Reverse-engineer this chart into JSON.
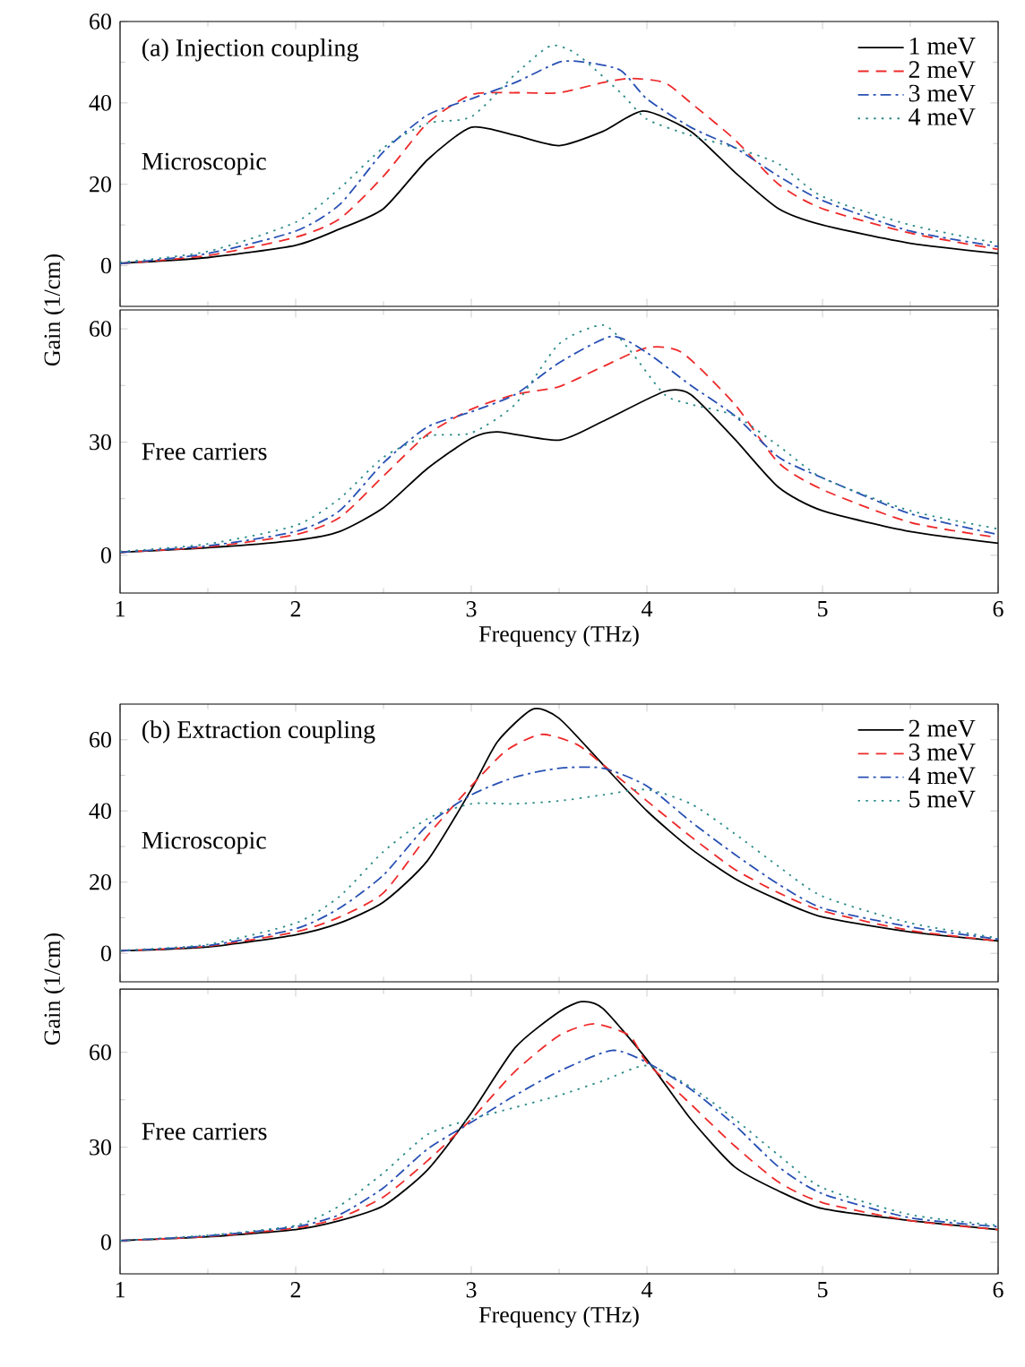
{
  "chart_data": [
    {
      "type": "line",
      "annotations": [
        "(a)  Injection coupling",
        "Microscopic"
      ],
      "xlim": [
        1,
        6
      ],
      "xticks": [
        1,
        2,
        3,
        4,
        5,
        6
      ],
      "ylim": [
        -10,
        60
      ],
      "yticks": [
        0,
        20,
        40,
        60
      ],
      "tick_labels": "y",
      "legend": "top right",
      "series": [
        {
          "name": "1 meV",
          "color": "#000000",
          "line_style": "solid",
          "x": [
            1,
            1.5,
            2,
            2.25,
            2.5,
            2.75,
            3,
            3.25,
            3.5,
            3.75,
            3.98,
            4.25,
            4.5,
            4.75,
            5,
            5.5,
            6
          ],
          "values": [
            0.6,
            2,
            5,
            9,
            14,
            26,
            34,
            32,
            29.5,
            33,
            38,
            33,
            23,
            14,
            10,
            5.5,
            3
          ]
        },
        {
          "name": "2 meV",
          "color": "#ee2a2a",
          "line_style": "dashed",
          "x": [
            1,
            1.5,
            2,
            2.25,
            2.5,
            2.75,
            3,
            3.25,
            3.5,
            3.75,
            3.9,
            4.1,
            4.25,
            4.5,
            4.75,
            5,
            5.5,
            6
          ],
          "values": [
            0.5,
            2.5,
            7,
            11.5,
            22,
            35,
            42,
            42.5,
            42.5,
            45,
            46,
            45,
            40,
            31,
            20,
            14,
            8,
            4
          ]
        },
        {
          "name": "3 meV",
          "color": "#2850b4",
          "line_style": "dashdot",
          "x": [
            1,
            1.5,
            2,
            2.25,
            2.5,
            2.75,
            3,
            3.25,
            3.5,
            3.65,
            3.85,
            4,
            4.25,
            4.5,
            4.75,
            5,
            5.5,
            6
          ],
          "values": [
            0.5,
            3,
            8.5,
            15,
            28,
            37,
            41,
            45,
            50,
            50,
            48,
            41,
            34,
            29,
            22,
            16,
            8.5,
            4.7
          ]
        },
        {
          "name": "4 meV",
          "color": "#2a8a8a",
          "line_style": "dotted",
          "x": [
            1,
            1.5,
            2,
            2.25,
            2.5,
            2.75,
            3,
            3.25,
            3.45,
            3.6,
            3.85,
            4,
            4.25,
            4.5,
            4.75,
            5,
            5.5,
            6
          ],
          "values": [
            0.8,
            3.5,
            10.7,
            19,
            29,
            35,
            36.6,
            47,
            54,
            52,
            42.5,
            36,
            32,
            29,
            25,
            17,
            10,
            5.5
          ]
        }
      ]
    },
    {
      "type": "line",
      "annotations": [
        "Free carriers"
      ],
      "ylabel": "Gain (1/cm)",
      "xlabel": "Frequency (THz)",
      "xlim": [
        1,
        6
      ],
      "xticks": [
        1,
        2,
        3,
        4,
        5,
        6
      ],
      "ylim": [
        -10,
        65
      ],
      "yticks": [
        0,
        30,
        60
      ],
      "series": [
        {
          "color": "#000000",
          "line_style": "solid",
          "x": [
            1,
            1.5,
            2,
            2.25,
            2.5,
            2.75,
            3,
            3.15,
            3.5,
            3.75,
            4.1,
            4.25,
            4.5,
            4.75,
            5,
            5.5,
            6
          ],
          "values": [
            0.8,
            2,
            4,
            6.3,
            12.6,
            23,
            31,
            32.7,
            30.5,
            35.5,
            43.4,
            42.6,
            30.8,
            18,
            11.8,
            6.3,
            3.2
          ]
        },
        {
          "color": "#ee2a2a",
          "line_style": "dashed",
          "x": [
            1,
            1.5,
            2,
            2.25,
            2.5,
            2.75,
            3,
            3.25,
            3.5,
            3.75,
            4,
            4.2,
            4.5,
            4.75,
            5,
            5.5,
            6
          ],
          "values": [
            0.8,
            2.2,
            5.5,
            10,
            21,
            32,
            38.7,
            42.6,
            44.7,
            50,
            55,
            53.7,
            40,
            24.5,
            17.4,
            8.7,
            4.7
          ]
        },
        {
          "color": "#2850b4",
          "line_style": "dashdot",
          "x": [
            1,
            1.5,
            2,
            2.25,
            2.5,
            2.75,
            3,
            3.25,
            3.5,
            3.8,
            4,
            4.25,
            4.5,
            4.75,
            5,
            5.5,
            6
          ],
          "values": [
            0.8,
            2.5,
            6.3,
            11.8,
            24.5,
            34,
            38,
            42.6,
            51,
            58,
            53.7,
            45,
            37,
            26,
            20.5,
            11,
            5.5
          ]
        },
        {
          "color": "#2a8a8a",
          "line_style": "dotted",
          "x": [
            1,
            1.5,
            2,
            2.25,
            2.5,
            2.75,
            3,
            3.25,
            3.5,
            3.75,
            3.9,
            4.1,
            4.25,
            4.5,
            4.75,
            5,
            5.5,
            6
          ],
          "values": [
            1,
            3,
            7.9,
            15,
            26,
            31.6,
            32.4,
            40,
            56,
            61,
            54.5,
            42.6,
            40,
            37,
            29,
            20.5,
            11.8,
            7
          ]
        }
      ]
    },
    {
      "type": "line",
      "annotations": [
        "(b)  Extraction coupling",
        "Microscopic"
      ],
      "xlim": [
        1,
        6
      ],
      "xticks": [
        1,
        2,
        3,
        4,
        5,
        6
      ],
      "ylim": [
        -8,
        70
      ],
      "yticks": [
        0,
        20,
        40,
        60
      ],
      "tick_labels": "y",
      "legend": "top right",
      "series": [
        {
          "name": "2 meV",
          "color": "#000000",
          "line_style": "solid",
          "x": [
            1,
            1.5,
            2,
            2.25,
            2.5,
            2.75,
            3,
            3.15,
            3.35,
            3.5,
            3.75,
            4,
            4.25,
            4.5,
            4.75,
            5,
            5.5,
            6
          ],
          "values": [
            0.7,
            1.8,
            5.2,
            8.5,
            14.4,
            26,
            46,
            59.5,
            68.6,
            66,
            53,
            40,
            29.4,
            21,
            15,
            10.2,
            6,
            3.5
          ]
        },
        {
          "name": "3 meV",
          "color": "#ee2a2a",
          "line_style": "dashed",
          "x": [
            1,
            1.5,
            2,
            2.25,
            2.5,
            2.75,
            3,
            3.2,
            3.4,
            3.6,
            3.75,
            4,
            4.25,
            4.5,
            4.75,
            5,
            5.5,
            6
          ],
          "values": [
            0.7,
            2,
            6,
            10.2,
            17,
            33,
            47,
            57,
            61.5,
            58.7,
            53,
            42.8,
            32.8,
            23.6,
            17,
            11.9,
            6.4,
            3.5
          ]
        },
        {
          "name": "4 meV",
          "color": "#2850b4",
          "line_style": "dashdot",
          "x": [
            1,
            1.5,
            2,
            2.25,
            2.5,
            2.75,
            3,
            3.25,
            3.5,
            3.75,
            4,
            4.25,
            4.5,
            4.75,
            5,
            5.5,
            6
          ],
          "values": [
            0.7,
            2.2,
            6.9,
            12.7,
            22,
            36,
            44.5,
            49.5,
            52,
            52,
            47,
            37,
            27.8,
            19.4,
            12.7,
            7.4,
            4
          ]
        },
        {
          "name": "5 meV",
          "color": "#2a8a8a",
          "line_style": "dotted",
          "x": [
            1,
            1.5,
            2,
            2.25,
            2.5,
            2.75,
            3,
            3.25,
            3.5,
            3.75,
            4,
            4.25,
            4.5,
            4.75,
            5,
            5.5,
            6
          ],
          "values": [
            0.8,
            2.5,
            8.5,
            16,
            28.6,
            37.8,
            42,
            42,
            42.8,
            44.5,
            46,
            42,
            33.6,
            24.4,
            16,
            8.5,
            4.3
          ]
        }
      ]
    },
    {
      "type": "line",
      "annotations": [
        "Free carriers"
      ],
      "ylabel": "Gain (1/cm)",
      "xlabel": "Frequency (THz)",
      "xlim": [
        1,
        6
      ],
      "xticks": [
        1,
        2,
        3,
        4,
        5,
        6
      ],
      "ylim": [
        -10,
        80
      ],
      "yticks": [
        0,
        30,
        60
      ],
      "series": [
        {
          "color": "#000000",
          "line_style": "solid",
          "x": [
            1,
            1.5,
            2,
            2.25,
            2.5,
            2.75,
            3,
            3.25,
            3.5,
            3.63,
            3.75,
            4,
            4.25,
            4.5,
            4.75,
            5,
            5.5,
            6
          ],
          "values": [
            0.5,
            1.7,
            4,
            6.8,
            11.5,
            22.8,
            40.8,
            61.5,
            72.8,
            76,
            73.8,
            57.7,
            38.9,
            23.8,
            16.2,
            10.6,
            6.8,
            4
          ]
        },
        {
          "color": "#ee2a2a",
          "line_style": "dashed",
          "x": [
            1,
            1.5,
            2,
            2.25,
            2.5,
            2.75,
            3,
            3.25,
            3.5,
            3.7,
            3.9,
            4,
            4.25,
            4.5,
            4.75,
            5,
            5.5,
            6
          ],
          "values": [
            0.5,
            1.8,
            4.5,
            7.7,
            14.3,
            25.7,
            38.9,
            54,
            65.3,
            69,
            65.3,
            56.8,
            43.6,
            30.4,
            19,
            12.5,
            6.8,
            4
          ]
        },
        {
          "color": "#2850b4",
          "line_style": "dashdot",
          "x": [
            1,
            1.5,
            2,
            2.25,
            2.5,
            2.75,
            3,
            3.25,
            3.5,
            3.8,
            4,
            4.25,
            4.5,
            4.75,
            5,
            5.5,
            6
          ],
          "values": [
            0.5,
            2,
            4.9,
            8.7,
            17.2,
            29.4,
            37.9,
            46.4,
            54,
            60.6,
            56.8,
            48.3,
            37,
            23.8,
            15.3,
            7.7,
            4.9
          ]
        },
        {
          "color": "#2a8a8a",
          "line_style": "dotted",
          "x": [
            1,
            1.5,
            2,
            2.25,
            2.5,
            2.75,
            3,
            3.25,
            3.5,
            3.75,
            4,
            4.25,
            4.5,
            4.75,
            5,
            5.5,
            6
          ],
          "values": [
            0.5,
            2.2,
            5.3,
            11.5,
            21.9,
            34,
            38.9,
            42.6,
            46.4,
            51,
            55.8,
            49,
            38.9,
            27.5,
            17.2,
            8.7,
            5.3
          ]
        }
      ]
    }
  ]
}
